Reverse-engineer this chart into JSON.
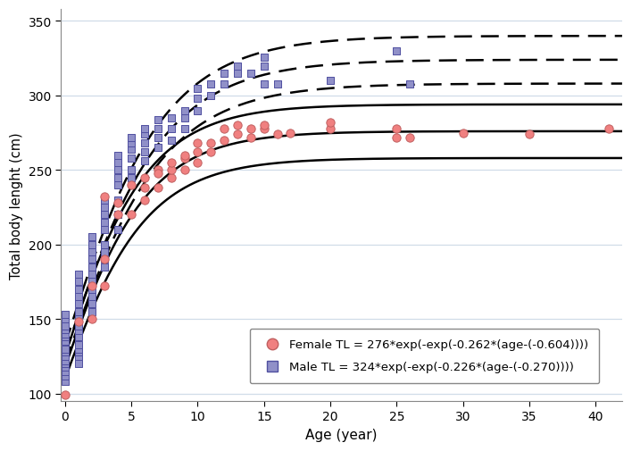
{
  "female_data": [
    [
      0,
      99
    ],
    [
      1,
      148
    ],
    [
      2,
      150
    ],
    [
      2,
      172
    ],
    [
      3,
      172
    ],
    [
      3,
      190
    ],
    [
      3,
      232
    ],
    [
      4,
      220
    ],
    [
      4,
      228
    ],
    [
      5,
      220
    ],
    [
      5,
      240
    ],
    [
      6,
      230
    ],
    [
      6,
      238
    ],
    [
      6,
      245
    ],
    [
      7,
      238
    ],
    [
      7,
      250
    ],
    [
      7,
      248
    ],
    [
      8,
      245
    ],
    [
      8,
      250
    ],
    [
      8,
      255
    ],
    [
      9,
      250
    ],
    [
      9,
      258
    ],
    [
      9,
      260
    ],
    [
      10,
      255
    ],
    [
      10,
      262
    ],
    [
      10,
      268
    ],
    [
      11,
      262
    ],
    [
      11,
      268
    ],
    [
      12,
      270
    ],
    [
      12,
      278
    ],
    [
      13,
      274
    ],
    [
      13,
      280
    ],
    [
      14,
      272
    ],
    [
      14,
      278
    ],
    [
      15,
      278
    ],
    [
      15,
      280
    ],
    [
      16,
      274
    ],
    [
      17,
      275
    ],
    [
      20,
      278
    ],
    [
      20,
      282
    ],
    [
      25,
      272
    ],
    [
      25,
      278
    ],
    [
      26,
      272
    ],
    [
      30,
      275
    ],
    [
      35,
      274
    ],
    [
      41,
      278
    ]
  ],
  "male_data": [
    [
      0,
      108
    ],
    [
      0,
      112
    ],
    [
      0,
      115
    ],
    [
      0,
      118
    ],
    [
      0,
      120
    ],
    [
      0,
      122
    ],
    [
      0,
      125
    ],
    [
      0,
      128
    ],
    [
      0,
      130
    ],
    [
      0,
      135
    ],
    [
      0,
      138
    ],
    [
      0,
      140
    ],
    [
      0,
      143
    ],
    [
      0,
      145
    ],
    [
      0,
      150
    ],
    [
      0,
      153
    ],
    [
      1,
      120
    ],
    [
      1,
      125
    ],
    [
      1,
      128
    ],
    [
      1,
      130
    ],
    [
      1,
      133
    ],
    [
      1,
      138
    ],
    [
      1,
      142
    ],
    [
      1,
      145
    ],
    [
      1,
      150
    ],
    [
      1,
      155
    ],
    [
      1,
      160
    ],
    [
      1,
      165
    ],
    [
      1,
      170
    ],
    [
      1,
      175
    ],
    [
      1,
      180
    ],
    [
      2,
      155
    ],
    [
      2,
      160
    ],
    [
      2,
      165
    ],
    [
      2,
      170
    ],
    [
      2,
      175
    ],
    [
      2,
      180
    ],
    [
      2,
      185
    ],
    [
      2,
      190
    ],
    [
      2,
      195
    ],
    [
      2,
      200
    ],
    [
      2,
      205
    ],
    [
      3,
      185
    ],
    [
      3,
      190
    ],
    [
      3,
      195
    ],
    [
      3,
      200
    ],
    [
      3,
      210
    ],
    [
      3,
      215
    ],
    [
      3,
      220
    ],
    [
      3,
      225
    ],
    [
      3,
      230
    ],
    [
      4,
      210
    ],
    [
      4,
      220
    ],
    [
      4,
      230
    ],
    [
      4,
      240
    ],
    [
      4,
      245
    ],
    [
      4,
      250
    ],
    [
      4,
      255
    ],
    [
      4,
      260
    ],
    [
      5,
      245
    ],
    [
      5,
      250
    ],
    [
      5,
      258
    ],
    [
      5,
      264
    ],
    [
      5,
      268
    ],
    [
      5,
      272
    ],
    [
      6,
      256
    ],
    [
      6,
      262
    ],
    [
      6,
      268
    ],
    [
      6,
      274
    ],
    [
      6,
      278
    ],
    [
      7,
      265
    ],
    [
      7,
      272
    ],
    [
      7,
      278
    ],
    [
      7,
      284
    ],
    [
      8,
      270
    ],
    [
      8,
      278
    ],
    [
      8,
      285
    ],
    [
      9,
      278
    ],
    [
      9,
      285
    ],
    [
      9,
      290
    ],
    [
      10,
      290
    ],
    [
      10,
      298
    ],
    [
      10,
      305
    ],
    [
      11,
      300
    ],
    [
      11,
      308
    ],
    [
      12,
      308
    ],
    [
      12,
      315
    ],
    [
      13,
      315
    ],
    [
      13,
      320
    ],
    [
      14,
      315
    ],
    [
      15,
      320
    ],
    [
      15,
      326
    ],
    [
      15,
      308
    ],
    [
      16,
      308
    ],
    [
      20,
      310
    ],
    [
      25,
      330
    ],
    [
      26,
      308
    ]
  ],
  "female_Linf": 276,
  "female_k": 0.262,
  "female_t0": -0.604,
  "male_Linf": 324,
  "male_k": 0.226,
  "male_t0": -0.27,
  "female_ci_lower_Linf": 258,
  "female_ci_upper_Linf": 294,
  "male_ci_lower_Linf": 308,
  "male_ci_upper_Linf": 340,
  "female_color": "#F08080",
  "female_edge_color": "#C06060",
  "male_color": "#9090C8",
  "male_edge_color": "#5050A0",
  "curve_color": "#000000",
  "xlabel": "Age (year)",
  "ylabel": "Total body lenght (cm)",
  "xlim": [
    -0.3,
    42
  ],
  "ylim": [
    95,
    358
  ],
  "xticks": [
    0,
    5,
    10,
    15,
    20,
    25,
    30,
    35,
    40
  ],
  "yticks": [
    100,
    150,
    200,
    250,
    300,
    350
  ],
  "grid_color": "#D0DCE8",
  "legend_female": "Female TL = 276*exp(-exp(-0.262*(age-(-0.604))))",
  "legend_male": "Male TL = 324*exp(-exp(-0.226*(age-(-0.270))))"
}
